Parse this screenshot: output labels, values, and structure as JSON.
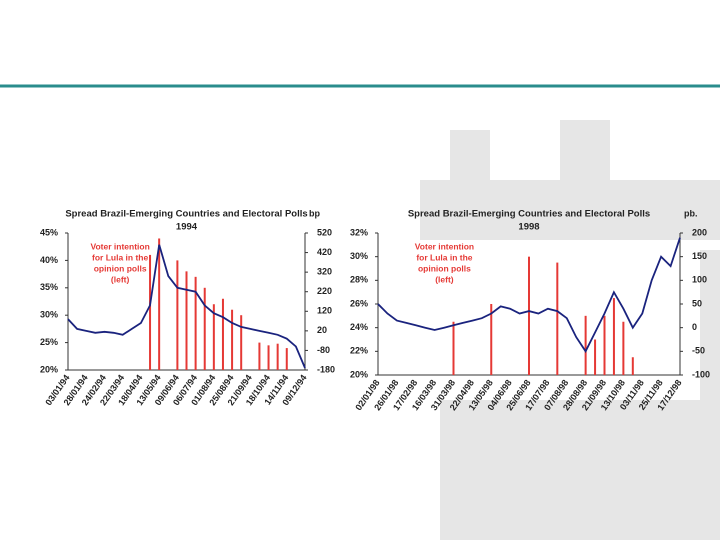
{
  "chart_data": [
    {
      "type": "combo",
      "title": "Spread Brazil-Emerging Countries and Electoral Polls",
      "subtitle": "1994",
      "y2label": "bp",
      "annotation": [
        "Voter intention",
        "for Lula in the",
        "opinion polls",
        "(left)"
      ],
      "categories": [
        "03/01/94",
        null,
        "28/01/94",
        null,
        "24/02/94",
        null,
        "22/03/94",
        null,
        "18/04/94",
        null,
        "13/05/94",
        null,
        "09/06/94",
        null,
        "06/07/94",
        null,
        "01/08/94",
        null,
        "25/08/94",
        null,
        "21/09/94",
        null,
        "18/10/94",
        null,
        "14/11/94",
        null,
        "09/12/94"
      ],
      "series": [
        {
          "kind": "bar",
          "color": "#e53935",
          "values": [
            null,
            null,
            null,
            null,
            null,
            null,
            null,
            null,
            null,
            41,
            44,
            null,
            40,
            38,
            37,
            35,
            32,
            33,
            31,
            30,
            null,
            25,
            24.5,
            24.8,
            24,
            null,
            null
          ]
        },
        {
          "kind": "line",
          "axis": "y2",
          "color": "#1a237e",
          "values": [
            80,
            30,
            20,
            10,
            15,
            10,
            0,
            30,
            60,
            150,
            460,
            300,
            240,
            230,
            220,
            150,
            110,
            90,
            60,
            40,
            30,
            20,
            10,
            0,
            -20,
            -60,
            -170
          ]
        }
      ],
      "ylim": [
        20,
        45
      ],
      "yticks": [
        {
          "value": 20,
          "label": "20%"
        },
        {
          "value": 25,
          "label": "25%"
        },
        {
          "value": 30,
          "label": "30%"
        },
        {
          "value": 35,
          "label": "35%"
        },
        {
          "value": 40,
          "label": "40%"
        },
        {
          "value": 45,
          "label": "45%"
        }
      ],
      "y2lim": [
        -180,
        520
      ],
      "y2ticks": [
        -180,
        -80,
        20,
        120,
        220,
        320,
        420,
        520
      ]
    },
    {
      "type": "combo",
      "title": "Spread Brazil-Emerging Countries and Electoral Polls",
      "subtitle": "1998",
      "y2label": "pb.",
      "annotation": [
        "Voter intention",
        "for Lula in the",
        "opinion polls",
        "(left)"
      ],
      "categories": [
        "02/01/98",
        null,
        "26/01/98",
        null,
        "17/02/98",
        null,
        "16/03/98",
        null,
        "31/03/98",
        null,
        "22/04/98",
        null,
        "13/05/98",
        null,
        "04/06/98",
        null,
        "25/06/98",
        null,
        "17/07/98",
        null,
        "07/08/98",
        null,
        "28/08/98",
        null,
        "21/09/98",
        null,
        "13/10/98",
        null,
        "03/11/98",
        null,
        "25/11/98",
        null,
        "17/12/98"
      ],
      "series": [
        {
          "kind": "bar",
          "color": "#e53935",
          "values": [
            null,
            null,
            null,
            null,
            null,
            null,
            null,
            null,
            24.5,
            null,
            null,
            null,
            26,
            null,
            null,
            null,
            30,
            null,
            null,
            29.5,
            null,
            null,
            25,
            23,
            25,
            26.5,
            24.5,
            21.5,
            null,
            null,
            null,
            null,
            null
          ]
        },
        {
          "kind": "line",
          "axis": "y2",
          "color": "#1a237e",
          "values": [
            50,
            30,
            15,
            10,
            5,
            0,
            -5,
            0,
            5,
            10,
            15,
            20,
            30,
            45,
            40,
            30,
            35,
            30,
            40,
            35,
            20,
            -20,
            -50,
            -10,
            30,
            75,
            40,
            0,
            30,
            100,
            150,
            130,
            190
          ]
        }
      ],
      "ylim": [
        20,
        32
      ],
      "yticks": [
        {
          "value": 20,
          "label": "20%"
        },
        {
          "value": 22,
          "label": "22%"
        },
        {
          "value": 24,
          "label": "24%"
        },
        {
          "value": 26,
          "label": "26%"
        },
        {
          "value": 28,
          "label": "28%"
        },
        {
          "value": 30,
          "label": "30%"
        },
        {
          "value": 32,
          "label": "32%"
        }
      ],
      "y2lim": [
        -100,
        200
      ],
      "y2ticks": [
        -100,
        -50,
        0,
        50,
        100,
        150,
        200
      ]
    }
  ]
}
